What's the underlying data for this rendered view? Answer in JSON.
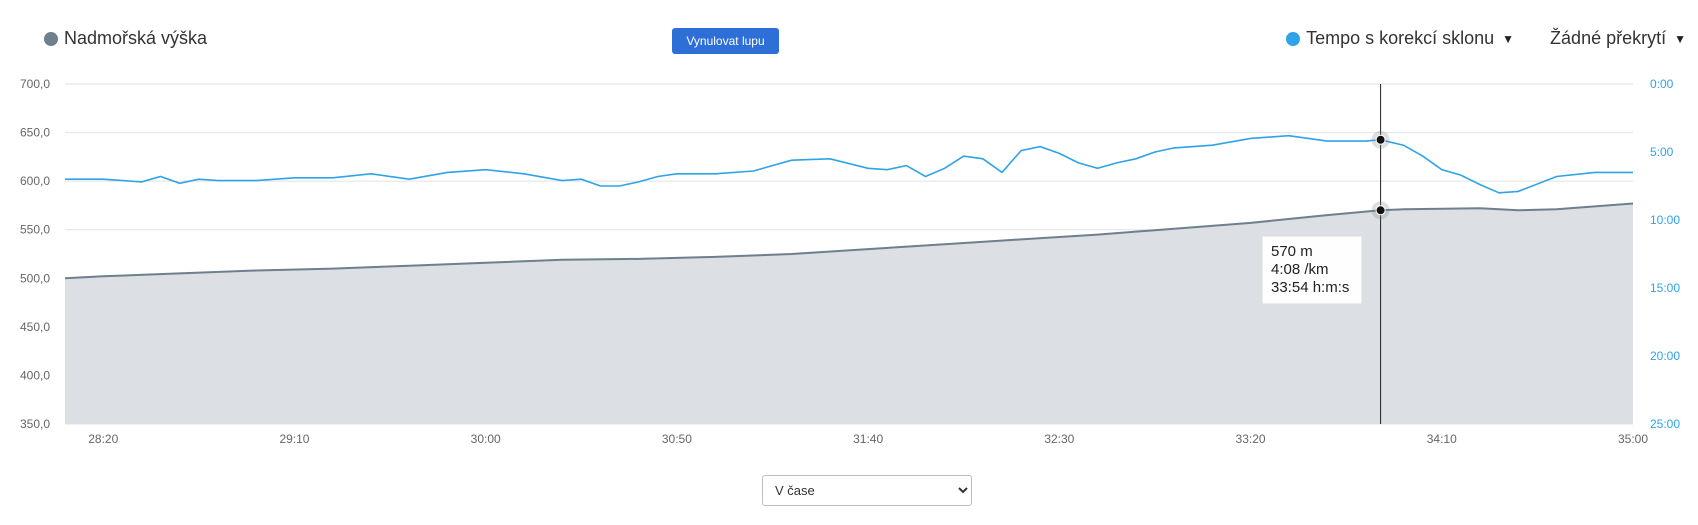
{
  "header": {
    "left_legend": {
      "label": "Nadmořská výška",
      "color": "#6e7f8d"
    },
    "reset_label": "Vynulovat lupu",
    "right_legend": {
      "label": "Tempo s korekcí sklonu",
      "color": "#2ea3e8"
    },
    "overlay_label": "Žádné překrytí"
  },
  "tooltip": {
    "line1": "570 m",
    "line2": "4:08 /km",
    "line3": "33:54 h:m:s"
  },
  "mode_select": {
    "value": "V čase"
  },
  "chart_data": {
    "type": "line",
    "x_ticks": [
      "28:20",
      "29:10",
      "30:00",
      "30:50",
      "31:40",
      "32:30",
      "33:20",
      "34:10",
      "35:00"
    ],
    "x_tick_seconds": [
      1700,
      1750,
      1800,
      1850,
      1900,
      1950,
      2000,
      2050,
      2100
    ],
    "x_range_seconds": [
      1690,
      2100
    ],
    "y_left": {
      "ticks": [
        "700,0",
        "650,0",
        "600,0",
        "550,0",
        "500,0",
        "450,0",
        "400,0",
        "350,0"
      ],
      "range": [
        350,
        700
      ],
      "unit": "m"
    },
    "y_right": {
      "ticks": [
        "0:00",
        "5:00",
        "10:00",
        "15:00",
        "20:00",
        "25:00"
      ],
      "range_minutes": [
        0,
        25
      ]
    },
    "grid": true,
    "cursor_seconds": 2034,
    "series": [
      {
        "name": "Nadmořská výška",
        "color": "#6e7f8d",
        "fill": "#dcdfe3",
        "axis": "left",
        "x": [
          1690,
          1700,
          1720,
          1740,
          1760,
          1780,
          1800,
          1820,
          1840,
          1860,
          1880,
          1900,
          1920,
          1940,
          1960,
          1980,
          2000,
          2020,
          2034,
          2040,
          2060,
          2070,
          2080,
          2100
        ],
        "y": [
          500,
          502,
          505,
          508,
          510,
          513,
          516,
          519,
          520,
          522,
          525,
          530,
          535,
          540,
          545,
          551,
          557,
          565,
          570,
          571,
          572,
          570,
          571,
          577
        ]
      },
      {
        "name": "Tempo s korekcí sklonu",
        "color": "#2ea3e8",
        "axis": "right",
        "x": [
          1690,
          1700,
          1710,
          1715,
          1720,
          1725,
          1730,
          1740,
          1750,
          1760,
          1770,
          1780,
          1790,
          1800,
          1810,
          1820,
          1825,
          1830,
          1835,
          1840,
          1845,
          1850,
          1860,
          1870,
          1880,
          1890,
          1900,
          1905,
          1910,
          1915,
          1920,
          1925,
          1930,
          1935,
          1940,
          1945,
          1950,
          1955,
          1960,
          1965,
          1970,
          1975,
          1980,
          1990,
          2000,
          2010,
          2020,
          2030,
          2034,
          2040,
          2045,
          2050,
          2055,
          2060,
          2065,
          2070,
          2080,
          2090,
          2100
        ],
        "y": [
          7.0,
          7.0,
          7.2,
          6.8,
          7.3,
          7.0,
          7.1,
          7.1,
          6.9,
          6.9,
          6.6,
          7.0,
          6.5,
          6.3,
          6.6,
          7.1,
          7.0,
          7.5,
          7.5,
          7.2,
          6.8,
          6.6,
          6.6,
          6.4,
          5.6,
          5.5,
          6.2,
          6.3,
          6.0,
          6.8,
          6.2,
          5.3,
          5.5,
          6.5,
          4.9,
          4.6,
          5.1,
          5.8,
          6.2,
          5.8,
          5.5,
          5.0,
          4.7,
          4.5,
          4.0,
          3.8,
          4.2,
          4.2,
          4.1,
          4.5,
          5.3,
          6.3,
          6.7,
          7.4,
          8.0,
          7.9,
          6.8,
          6.5,
          6.5
        ]
      }
    ]
  }
}
